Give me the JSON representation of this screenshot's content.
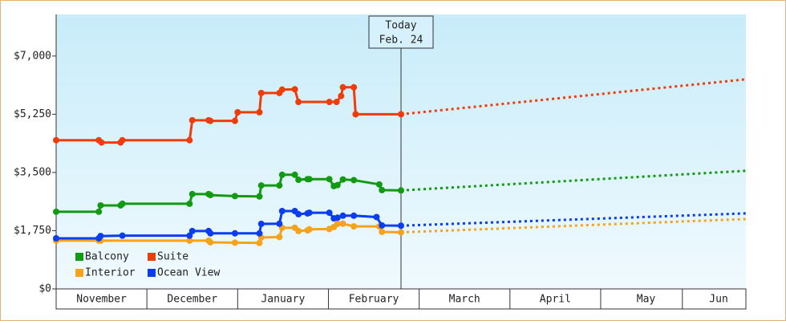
{
  "chart_data": {
    "type": "line",
    "ylim": [
      0,
      8250
    ],
    "yticks": [
      {
        "value": 0,
        "label": "$0"
      },
      {
        "value": 1750,
        "label": "$1,750"
      },
      {
        "value": 3500,
        "label": "$3,500"
      },
      {
        "value": 5250,
        "label": "$5,250"
      },
      {
        "value": 7000,
        "label": "$7,000"
      }
    ],
    "xlim": [
      0,
      7.6
    ],
    "xticks": [
      {
        "value": 0.5,
        "label": "November"
      },
      {
        "value": 1.5,
        "label": "December"
      },
      {
        "value": 2.5,
        "label": "January"
      },
      {
        "value": 3.5,
        "label": "February"
      },
      {
        "value": 4.5,
        "label": "March"
      },
      {
        "value": 5.5,
        "label": "April"
      },
      {
        "value": 6.5,
        "label": "May"
      },
      {
        "value": 7.3,
        "label": "Jun"
      }
    ],
    "annotation": {
      "x": 3.8,
      "lines": [
        "Today",
        "Feb. 24"
      ]
    },
    "legend": "bottom-left",
    "series": [
      {
        "name": "Balcony",
        "color": "#139a13",
        "x": [
          0,
          0.47,
          0.49,
          0.71,
          0.73,
          1.47,
          1.5,
          1.68,
          1.7,
          1.97,
          2.24,
          2.26,
          2.46,
          2.49,
          2.63,
          2.67,
          2.77,
          2.79,
          3.01,
          3.06,
          3.1,
          3.16,
          3.28,
          3.56,
          3.59,
          3.8,
          7.6
        ],
        "values": [
          2320,
          2320,
          2510,
          2510,
          2560,
          2560,
          2850,
          2850,
          2820,
          2790,
          2780,
          3110,
          3110,
          3430,
          3430,
          3280,
          3300,
          3300,
          3300,
          3090,
          3120,
          3290,
          3270,
          3140,
          2970,
          2960,
          3550
        ]
      },
      {
        "name": "Suite",
        "color": "#f03c0a",
        "x": [
          0,
          0.47,
          0.5,
          0.71,
          0.73,
          1.47,
          1.5,
          1.68,
          1.7,
          1.97,
          2.0,
          2.24,
          2.26,
          2.46,
          2.49,
          2.63,
          2.67,
          3.01,
          3.09,
          3.14,
          3.16,
          3.28,
          3.3,
          3.8,
          7.6
        ],
        "values": [
          4470,
          4470,
          4400,
          4400,
          4470,
          4470,
          5070,
          5070,
          5050,
          5050,
          5310,
          5310,
          5890,
          5890,
          5990,
          6000,
          5620,
          5620,
          5620,
          5800,
          6060,
          6060,
          5250,
          5250,
          6300
        ]
      },
      {
        "name": "Interior",
        "color": "#f5a31a",
        "x": [
          0,
          0.47,
          0.49,
          1.47,
          1.68,
          1.7,
          1.97,
          2.24,
          2.26,
          2.46,
          2.49,
          2.63,
          2.67,
          2.77,
          2.79,
          3.01,
          3.06,
          3.1,
          3.16,
          3.28,
          3.56,
          3.59,
          3.8,
          7.6
        ],
        "values": [
          1450,
          1450,
          1450,
          1450,
          1450,
          1400,
          1390,
          1380,
          1545,
          1560,
          1835,
          1840,
          1740,
          1760,
          1790,
          1800,
          1860,
          1955,
          1960,
          1880,
          1880,
          1714,
          1700,
          2100
        ]
      },
      {
        "name": "Ocean View",
        "color": "#0a3cf0",
        "x": [
          0,
          0.47,
          0.49,
          0.73,
          1.47,
          1.5,
          1.68,
          1.7,
          1.97,
          2.24,
          2.26,
          2.46,
          2.49,
          2.63,
          2.67,
          2.77,
          2.79,
          3.01,
          3.06,
          3.1,
          3.16,
          3.28,
          3.53,
          3.59,
          3.8,
          7.6
        ],
        "values": [
          1520,
          1520,
          1590,
          1600,
          1600,
          1740,
          1740,
          1670,
          1670,
          1670,
          1955,
          1960,
          2340,
          2340,
          2245,
          2270,
          2290,
          2290,
          2120,
          2140,
          2200,
          2200,
          2160,
          1907,
          1900,
          2270
        ]
      }
    ]
  }
}
